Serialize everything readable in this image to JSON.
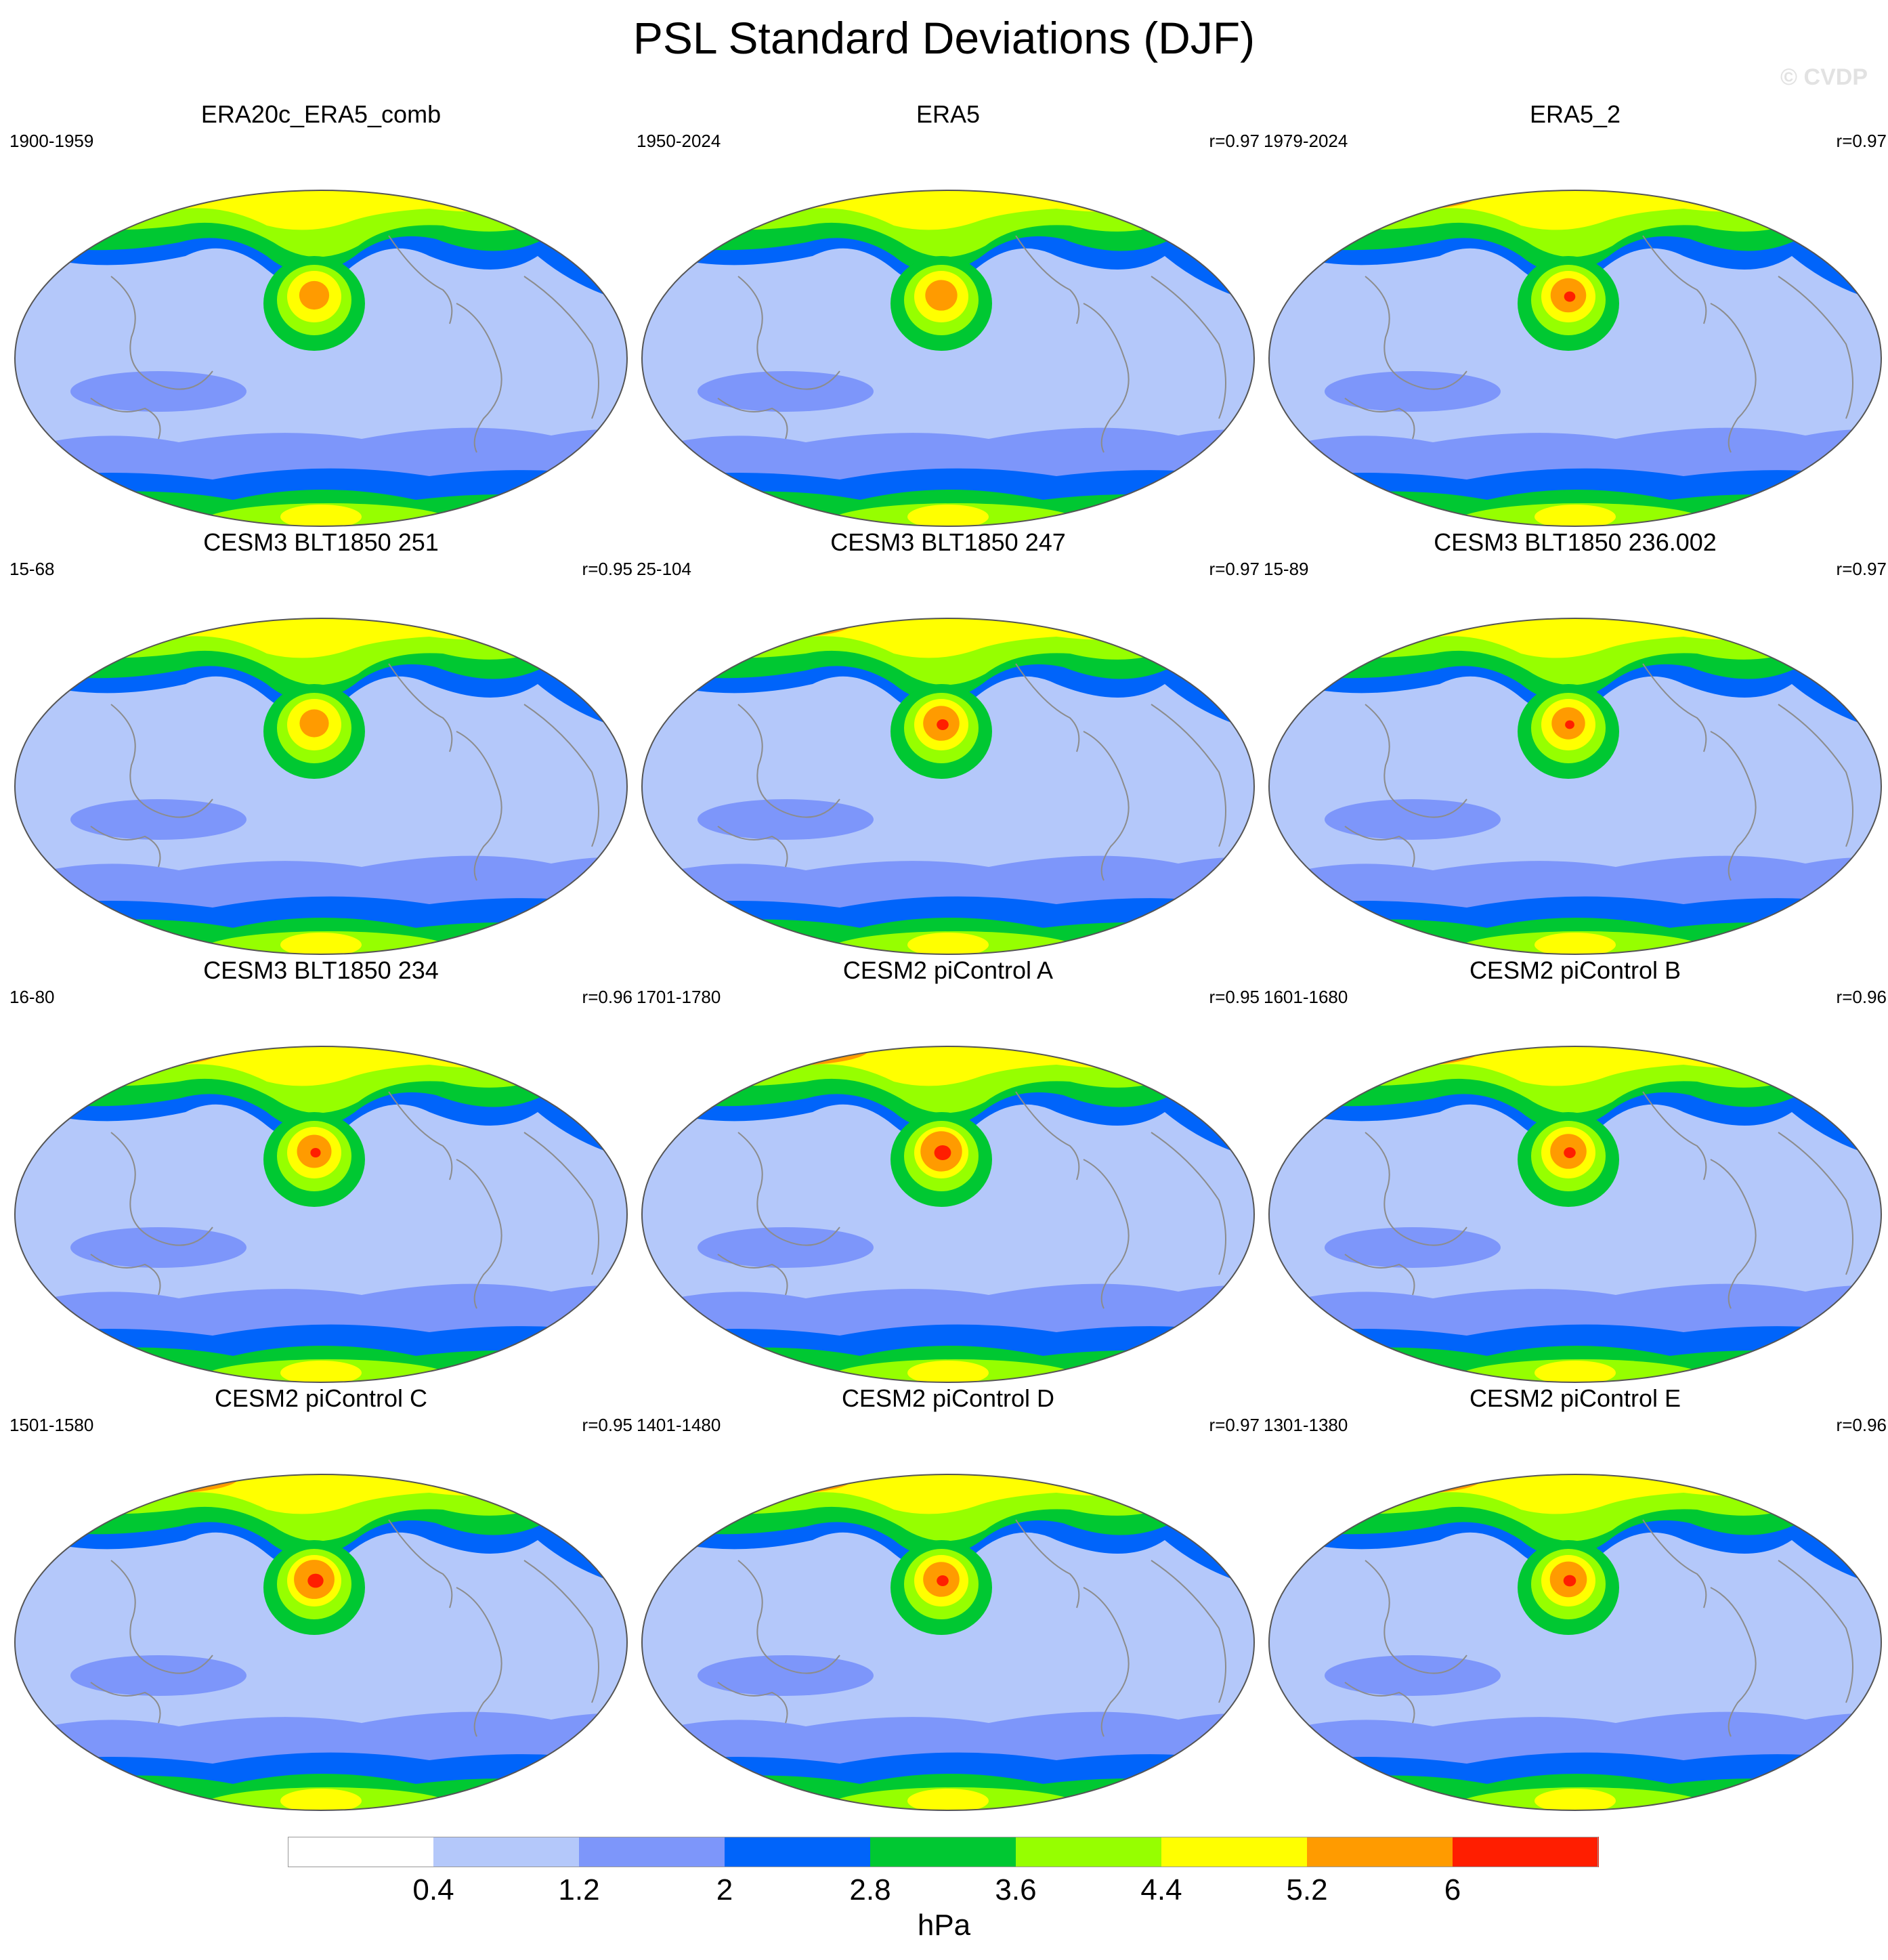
{
  "figure": {
    "title": "PSL Standard Deviations (DJF)",
    "watermark": "© CVDP",
    "units": "hPa"
  },
  "colorbar": {
    "colors": [
      "#ffffff",
      "#b4c8fa",
      "#7d96fa",
      "#0064fa",
      "#00c832",
      "#96ff00",
      "#ffff00",
      "#ff9b00",
      "#ff1e00"
    ],
    "ticks": [
      "0.4",
      "1.2",
      "2",
      "2.8",
      "3.6",
      "4.4",
      "5.2",
      "6"
    ]
  },
  "panels": [
    {
      "title": "ERA20c_ERA5_comb",
      "years": "1900-1959",
      "r": "",
      "peak": 0.62
    },
    {
      "title": "ERA5",
      "years": "1950-2024",
      "r": "r=0.97",
      "peak": 0.68
    },
    {
      "title": "ERA5_2",
      "years": "1979-2024",
      "r": "r=0.97",
      "peak": 0.78
    },
    {
      "title": "CESM3 BLT1850 251",
      "years": "15-68",
      "r": "r=0.95",
      "peak": 0.6
    },
    {
      "title": "CESM3 BLT1850 247",
      "years": "25-104",
      "r": "r=0.97",
      "peak": 0.8
    },
    {
      "title": "CESM3 BLT1850 236.002",
      "years": "15-89",
      "r": "r=0.97",
      "peak": 0.72
    },
    {
      "title": "CESM3 BLT1850 234",
      "years": "16-80",
      "r": "r=0.96",
      "peak": 0.75
    },
    {
      "title": "CESM2 piControl A",
      "years": "1701-1780",
      "r": "r=0.95",
      "peak": 0.95
    },
    {
      "title": "CESM2 piControl B",
      "years": "1601-1680",
      "r": "r=0.96",
      "peak": 0.8
    },
    {
      "title": "CESM2 piControl C",
      "years": "1501-1580",
      "r": "r=0.95",
      "peak": 0.92
    },
    {
      "title": "CESM2 piControl D",
      "years": "1401-1480",
      "r": "r=0.97",
      "peak": 0.8
    },
    {
      "title": "CESM2 piControl E",
      "years": "1301-1380",
      "r": "r=0.96",
      "peak": 0.82
    }
  ]
}
